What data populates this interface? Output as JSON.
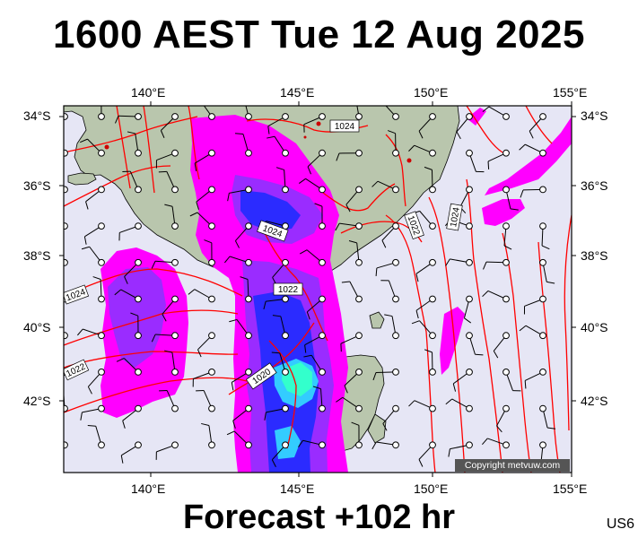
{
  "header": {
    "title": "1600 AEST Tue 12 Aug 2025"
  },
  "footer": {
    "forecast": "Forecast +102 hr",
    "code": "US6"
  },
  "map": {
    "copyright": "Copyright metvuw.com",
    "lon_ticks": [
      "140°E",
      "145°E",
      "150°E",
      "155°E"
    ],
    "lat_ticks": [
      "34°S",
      "36°S",
      "38°S",
      "40°S",
      "42°S"
    ],
    "isobar_labels": [
      "1024",
      "1024",
      "1022",
      "1024",
      "1022",
      "1020",
      "1024",
      "1022"
    ],
    "colors": {
      "ocean": "#e6e6f5",
      "land": "#b9c6ad",
      "isobar": "#ff0000",
      "rain_light": "#ff00ff",
      "rain_medium": "#9a2cff",
      "rain_heavy": "#2b2bff",
      "rain_extreme": "#33ffcc"
    }
  }
}
